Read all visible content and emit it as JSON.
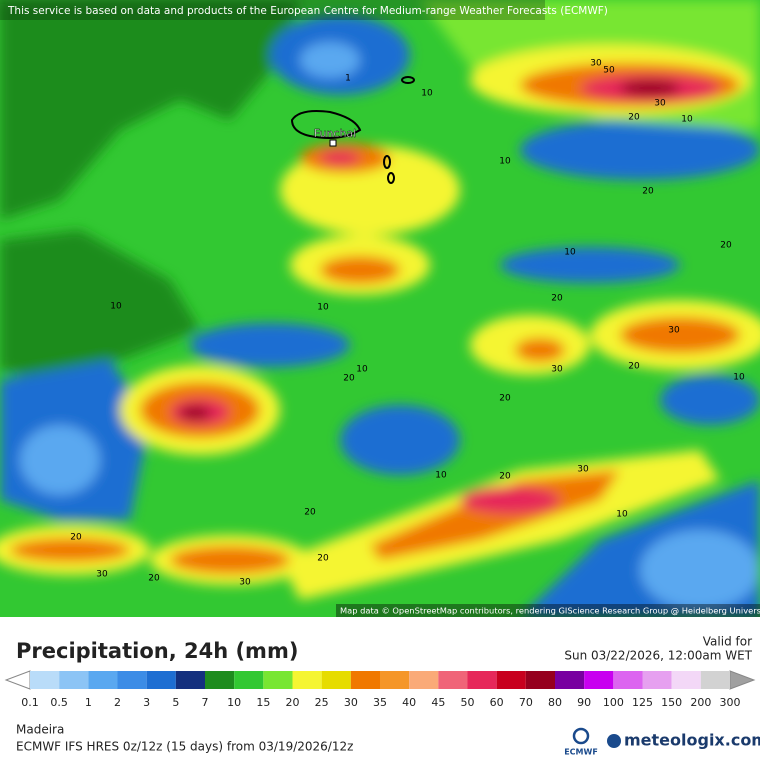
{
  "header": {
    "notice": "This service is based on data and products of the European Centre for Medium-range Weather Forecasts (ECMWF)"
  },
  "map": {
    "place_label": "Funchal",
    "attribution": "Map data © OpenStreetMap contributors, rendering GIScience Research Group @ Heidelberg University",
    "contour_labels": [
      "1",
      "10",
      "30",
      "50",
      "30",
      "20",
      "10",
      "10",
      "20",
      "20",
      "10",
      "20",
      "10",
      "10",
      "30",
      "20",
      "30",
      "10",
      "20",
      "10",
      "20",
      "10",
      "20",
      "30",
      "10",
      "20",
      "20",
      "20",
      "30",
      "20",
      "30"
    ]
  },
  "legend": {
    "title": "Precipitation, 24h (mm)",
    "valid_label": "Valid for",
    "valid_time": "Sun 03/22/2026, 12:00am WET",
    "levels": [
      0.1,
      0.5,
      1,
      2,
      3,
      5,
      7,
      10,
      15,
      20,
      25,
      30,
      35,
      40,
      45,
      50,
      60,
      70,
      80,
      90,
      100,
      125,
      150,
      200,
      300
    ],
    "colors": [
      "#b9dcf9",
      "#8cc4f5",
      "#5aa8f0",
      "#3c8ce6",
      "#1e6ed2",
      "#14307e",
      "#1e8c1e",
      "#32c832",
      "#78e632",
      "#f5f532",
      "#e6dc00",
      "#f07800",
      "#f59628",
      "#faaa78",
      "#f06478",
      "#e6285a",
      "#c8001e",
      "#96001e",
      "#7800a0",
      "#c800f0",
      "#dc64f0",
      "#e6a0f0",
      "#f3d8f7",
      "#d2d2d2"
    ],
    "under_color": "#ffffff",
    "over_color": "#a0a0a0"
  },
  "footer": {
    "region": "Madeira",
    "model": "ECMWF IFS HRES 0z/12z (15 days) from  03/19/2026/12z",
    "ecmwf": "ECMWF",
    "brand": "meteologix.com"
  }
}
